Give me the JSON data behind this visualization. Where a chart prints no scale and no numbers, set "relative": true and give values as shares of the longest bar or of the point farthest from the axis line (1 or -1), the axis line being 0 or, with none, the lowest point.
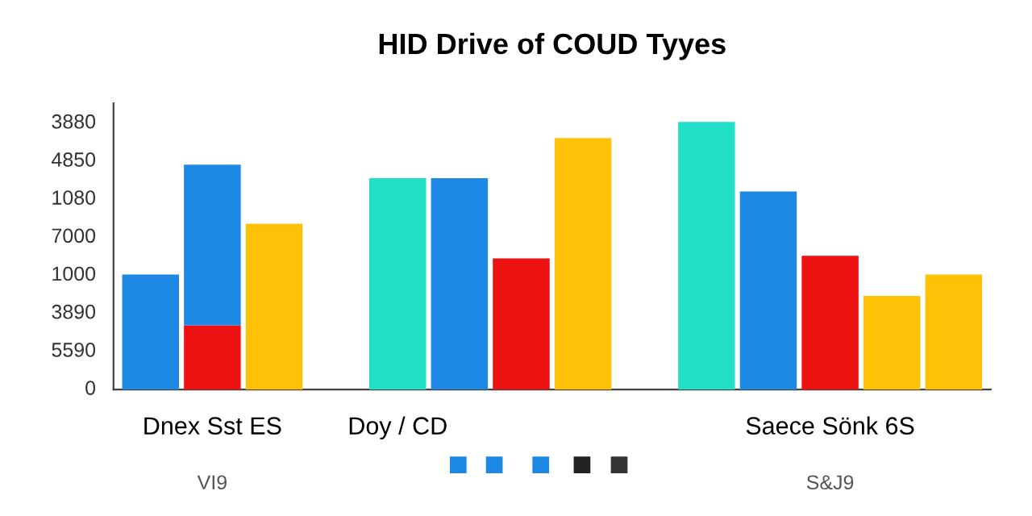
{
  "chart_data": {
    "type": "bar",
    "title": "HID Drive of COUD Tyyes",
    "stacked": true,
    "relative": true,
    "categories": [
      null,
      "Dnex Sst ES",
      null,
      null,
      "Doy / CD",
      null,
      null,
      null,
      null,
      null,
      null,
      "Saece Sönk 6S",
      null,
      null
    ],
    "series": [
      {
        "colors": [
          "#1e88e5",
          "#ee1111",
          "#ffc107",
          null,
          "#22e0c8",
          "#1e88e5",
          "#ee1111",
          "#ffc107",
          null,
          "#22e0c8",
          "#1e88e5",
          "#ee1111",
          "#ffc107",
          "#ffc107"
        ],
        "values": [
          0.43,
          0.24,
          0.62,
          null,
          0.79,
          0.79,
          0.49,
          0.94,
          null,
          1,
          0.74,
          0.5,
          0.35,
          0.43
        ]
      },
      {
        "colors": [
          null,
          "#1e88e5",
          null,
          null,
          null,
          null,
          null,
          null,
          null,
          null,
          null,
          null,
          null,
          null
        ],
        "values": [
          null,
          0.6,
          null,
          null,
          null,
          null,
          null,
          null,
          null,
          null,
          null,
          null,
          null,
          null
        ]
      }
    ],
    "annotations": [
      "0",
      "5590",
      "3890",
      "1000",
      "7000",
      "1080",
      "4850",
      "3880",
      "VI9",
      "S&J9"
    ]
  }
}
